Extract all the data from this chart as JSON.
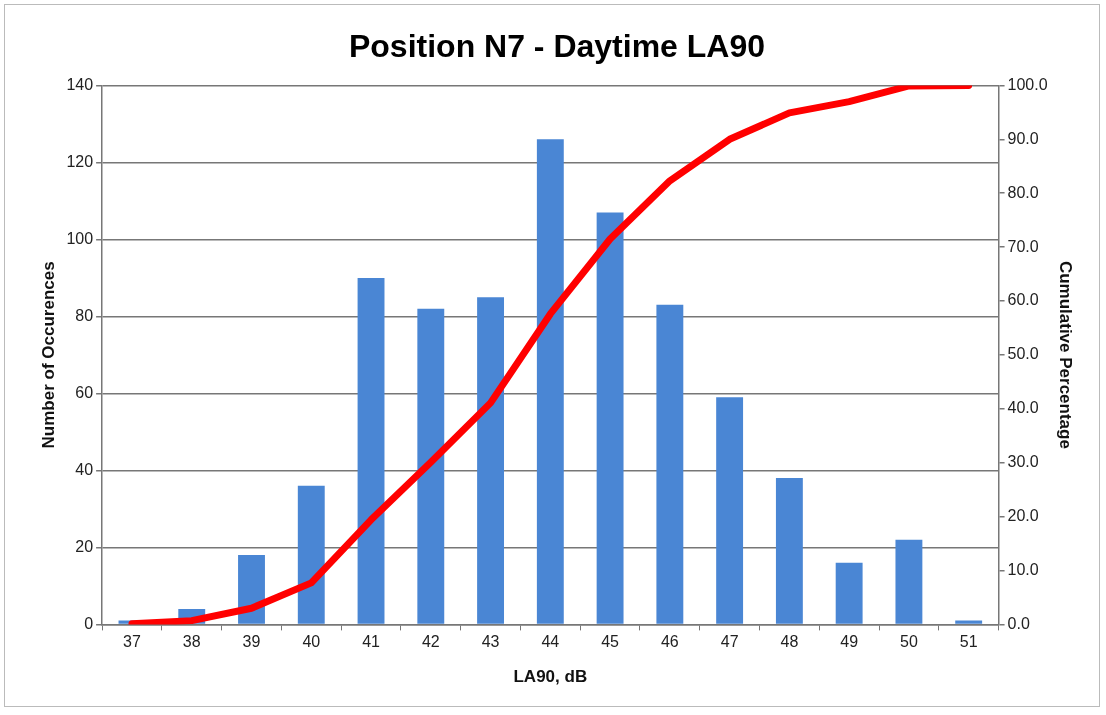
{
  "chart_data": {
    "type": "bar",
    "title": "Position N7 - Daytime LA90",
    "xlabel": "LA90, dB",
    "ylabel": "Number of Occurences",
    "y2label": "Cumulative Percentage",
    "categories": [
      "37",
      "38",
      "39",
      "40",
      "41",
      "42",
      "43",
      "44",
      "45",
      "46",
      "47",
      "48",
      "49",
      "50",
      "51"
    ],
    "series": [
      {
        "color": "#4a86d4",
        "values": [
          1,
          4,
          18,
          36,
          90,
          82,
          85,
          126,
          107,
          83,
          59,
          38,
          16,
          22,
          1
        ]
      },
      {
        "type": "line",
        "axis": "y2",
        "color": "#ff0000",
        "values": [
          0.1,
          0.7,
          3.0,
          7.7,
          19.4,
          30.1,
          41.1,
          57.6,
          71.5,
          82.3,
          90.0,
          94.9,
          97.0,
          99.9,
          100.0
        ]
      }
    ],
    "ylim": [
      0,
      140
    ],
    "yticks": [
      0,
      20,
      40,
      60,
      80,
      100,
      120,
      140
    ],
    "y2lim": [
      0,
      100
    ],
    "y2ticks": [
      {
        "value": 0,
        "label": "0.0"
      },
      {
        "value": 10,
        "label": "10.0"
      },
      {
        "value": 20,
        "label": "20.0"
      },
      {
        "value": 30,
        "label": "30.0"
      },
      {
        "value": 40,
        "label": "40.0"
      },
      {
        "value": 50,
        "label": "50.0"
      },
      {
        "value": 60,
        "label": "60.0"
      },
      {
        "value": 70,
        "label": "70.0"
      },
      {
        "value": 80,
        "label": "80.0"
      },
      {
        "value": 90,
        "label": "90.0"
      },
      {
        "value": 100,
        "label": "100.0"
      }
    ],
    "grid": "y",
    "legend": false,
    "marker": "none"
  }
}
